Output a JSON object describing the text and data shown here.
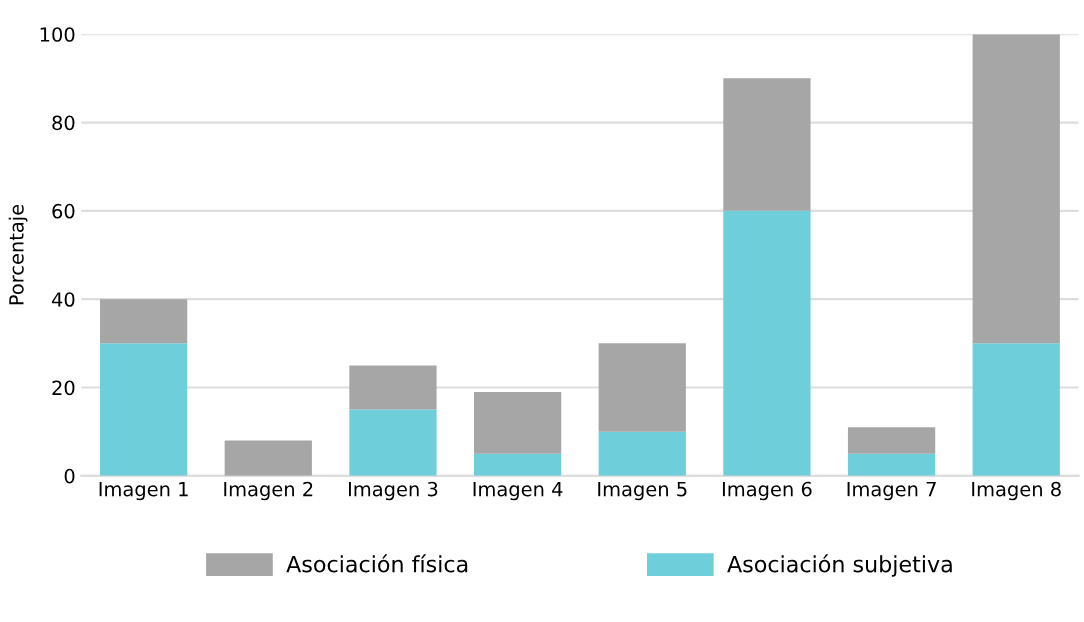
{
  "chart_data": {
    "type": "bar",
    "stacked": true,
    "ylabel": "Porcentaje",
    "categories": [
      "Imagen 1",
      "Imagen 2",
      "Imagen 3",
      "Imagen 4",
      "Imagen 5",
      "Imagen 6",
      "Imagen 7",
      "Imagen 8"
    ],
    "series": [
      {
        "name": "Asociación subjetiva",
        "color": "#6ecfdb",
        "values": [
          30,
          0,
          15,
          5,
          10,
          60,
          5,
          30
        ]
      },
      {
        "name": "Asociación física",
        "color": "#a6a6a6",
        "values": [
          10,
          8,
          10,
          14,
          20,
          30,
          6,
          70
        ]
      }
    ],
    "ylim": [
      0,
      100
    ],
    "yticks": [
      0,
      20,
      40,
      60,
      80,
      100
    ],
    "grid": "y",
    "legend": "bottom"
  }
}
